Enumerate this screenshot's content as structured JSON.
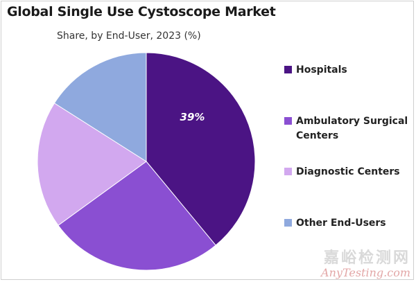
{
  "chart_data": {
    "type": "pie",
    "title": "Global Single Use Cystoscope Market",
    "subtitle": "Share, by End-User, 2023 (%)",
    "categories": [
      "Hospitals",
      "Ambulatory Surgical Centers",
      "Diagnostic Centers",
      "Other End-Users"
    ],
    "values": [
      39,
      26,
      19,
      16
    ],
    "colors": [
      "#4b1484",
      "#8a4fd2",
      "#d2a8ef",
      "#8fa9de"
    ],
    "data_labels": [
      "39%",
      "",
      "",
      ""
    ],
    "legend_position": "right"
  },
  "watermark": {
    "text_cn": "嘉峪检测网",
    "text_en": "AnyTesting.com"
  }
}
